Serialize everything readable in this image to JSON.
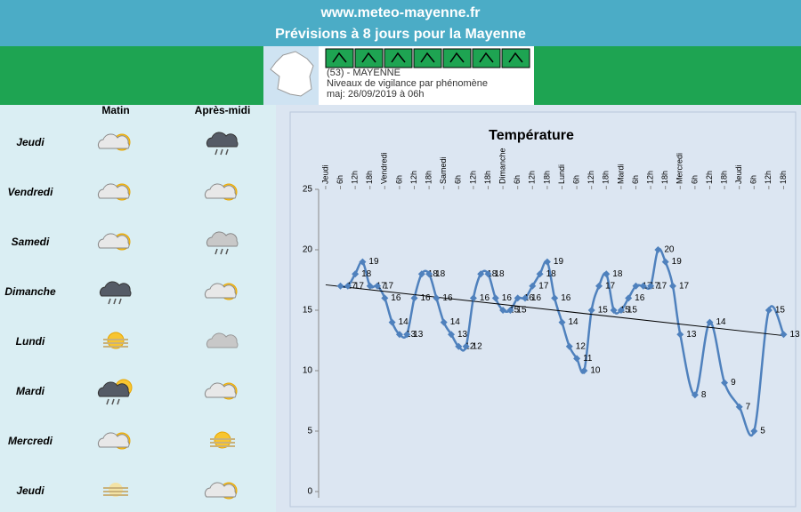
{
  "header": {
    "site": "www.meteo-mayenne.fr",
    "title": "Prévisions à 8 jours pour la Mayenne"
  },
  "vigilance": {
    "dept": "(53) - MAYENNE",
    "subtitle": "Niveaux de vigilance par phénomène",
    "updated": "maj: 26/09/2019 à 06h"
  },
  "forecast": {
    "columns": [
      "Matin",
      "Après-midi"
    ],
    "rows": [
      {
        "day": "Jeudi",
        "icons": [
          "sun-cloud",
          "rain"
        ]
      },
      {
        "day": "Vendredi",
        "icons": [
          "sun-cloud",
          "sun-cloud"
        ]
      },
      {
        "day": "Samedi",
        "icons": [
          "sun-cloud",
          "cloud-rain"
        ]
      },
      {
        "day": "Dimanche",
        "icons": [
          "rain",
          "sun-cloud"
        ]
      },
      {
        "day": "Lundi",
        "icons": [
          "sun-fog",
          "cloud"
        ]
      },
      {
        "day": "Mardi",
        "icons": [
          "rain-sun",
          "sun-cloud"
        ]
      },
      {
        "day": "Mercredi",
        "icons": [
          "sun-cloud",
          "sun-fog"
        ]
      },
      {
        "day": "Jeudi",
        "icons": [
          "fog",
          "sun-cloud"
        ]
      }
    ]
  },
  "chart_data": {
    "type": "line",
    "title": "Température",
    "color": "#4f81bd",
    "trend_color": "#000000",
    "x": [
      6,
      9,
      12,
      15,
      18,
      21,
      24,
      27,
      30,
      33,
      36,
      39,
      42,
      45,
      48,
      51,
      54,
      57,
      60,
      63,
      66,
      69,
      72,
      75,
      78,
      81,
      84,
      87,
      90,
      93,
      96,
      99,
      102,
      105,
      108,
      111,
      114,
      117,
      120,
      123,
      126,
      129,
      132,
      135,
      138,
      141,
      144,
      150,
      156,
      162,
      168,
      174,
      180,
      186
    ],
    "values": [
      17,
      17,
      18,
      19,
      17,
      17,
      16,
      14,
      13,
      13,
      16,
      18,
      18,
      16,
      14,
      13,
      12,
      12,
      16,
      18,
      18,
      16,
      15,
      15,
      16,
      16,
      17,
      18,
      19,
      16,
      14,
      12,
      11,
      10,
      15,
      17,
      18,
      15,
      15,
      16,
      17,
      17,
      17,
      20,
      19,
      17,
      13,
      8,
      14,
      9,
      7,
      5,
      15,
      13
    ],
    "trendline": {
      "x": [
        0,
        186
      ],
      "values": [
        17.1,
        12.9
      ]
    },
    "xlim": [
      -2.5,
      188
    ],
    "ylim": [
      0,
      25
    ],
    "yticks": [
      0,
      5,
      10,
      15,
      20,
      25
    ],
    "xticks": [
      {
        "value": 0,
        "label": "Jeudi"
      },
      {
        "value": 6,
        "label": "6h"
      },
      {
        "value": 12,
        "label": "12h"
      },
      {
        "value": 18,
        "label": "18h"
      },
      {
        "value": 24,
        "label": "Vendredi"
      },
      {
        "value": 30,
        "label": "6h"
      },
      {
        "value": 36,
        "label": "12h"
      },
      {
        "value": 42,
        "label": "18h"
      },
      {
        "value": 48,
        "label": "Samedi"
      },
      {
        "value": 54,
        "label": "6h"
      },
      {
        "value": 60,
        "label": "12h"
      },
      {
        "value": 66,
        "label": "18h"
      },
      {
        "value": 72,
        "label": "Dimanche"
      },
      {
        "value": 78,
        "label": "6h"
      },
      {
        "value": 84,
        "label": "12h"
      },
      {
        "value": 90,
        "label": "18h"
      },
      {
        "value": 96,
        "label": "Lundi"
      },
      {
        "value": 102,
        "label": "6h"
      },
      {
        "value": 108,
        "label": "12h"
      },
      {
        "value": 114,
        "label": "18h"
      },
      {
        "value": 120,
        "label": "Mardi"
      },
      {
        "value": 126,
        "label": "6h"
      },
      {
        "value": 132,
        "label": "12h"
      },
      {
        "value": 138,
        "label": "18h"
      },
      {
        "value": 144,
        "label": "Mercredi"
      },
      {
        "value": 150,
        "label": "6h"
      },
      {
        "value": 156,
        "label": "12h"
      },
      {
        "value": 162,
        "label": "18h"
      },
      {
        "value": 168,
        "label": "Jeudi"
      },
      {
        "value": 174,
        "label": "6h"
      },
      {
        "value": 180,
        "label": "12h"
      },
      {
        "value": 186,
        "label": "18h"
      }
    ]
  }
}
